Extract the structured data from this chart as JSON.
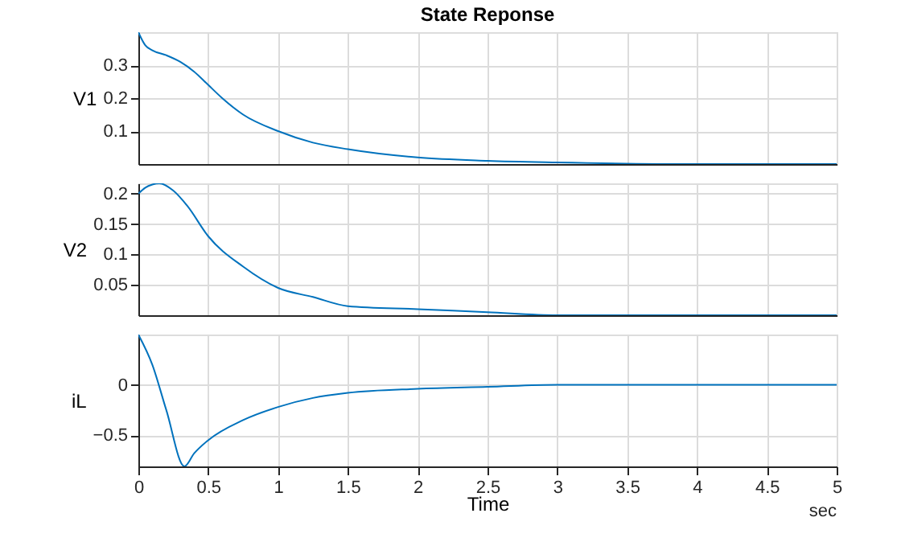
{
  "chart_data": [
    {
      "type": "line",
      "title": "State Reponse",
      "ylabel": "V1",
      "x": [
        0,
        0.05,
        0.1,
        0.2,
        0.3,
        0.4,
        0.5,
        0.6,
        0.75,
        1,
        1.25,
        1.5,
        2,
        2.5,
        3,
        4,
        5
      ],
      "series": [
        {
          "color": "#0072bd",
          "values": [
            0.4,
            0.36,
            0.345,
            0.33,
            0.31,
            0.28,
            0.24,
            0.2,
            0.15,
            0.1,
            0.065,
            0.045,
            0.02,
            0.01,
            0.005,
            0.0,
            0.0
          ]
        }
      ],
      "xlim": [
        0,
        5
      ],
      "xticks": [
        0,
        0.5,
        1,
        1.5,
        2,
        2.5,
        3,
        3.5,
        4,
        4.5,
        5
      ],
      "ylim": [
        0,
        0.4
      ],
      "yticks": [
        0.1,
        0.2,
        0.3
      ],
      "grid": true,
      "tick_labels": "y"
    },
    {
      "type": "line",
      "ylabel": "V2",
      "x": [
        0,
        0.05,
        0.1,
        0.15,
        0.25,
        0.35,
        0.5,
        0.75,
        1,
        1.25,
        1.5,
        2,
        2.5,
        3,
        4,
        5
      ],
      "series": [
        {
          "color": "#0072bd",
          "values": [
            0.2,
            0.21,
            0.215,
            0.217,
            0.205,
            0.18,
            0.13,
            0.08,
            0.045,
            0.03,
            0.015,
            0.01,
            0.005,
            0.0,
            0.0,
            0.0
          ]
        }
      ],
      "xlim": [
        0,
        5
      ],
      "xticks": [
        0,
        0.5,
        1,
        1.5,
        2,
        2.5,
        3,
        3.5,
        4,
        4.5,
        5
      ],
      "ylim": [
        0,
        0.217
      ],
      "yticks": [
        0.05,
        0.1,
        0.15,
        0.2
      ],
      "grid": true,
      "tick_labels": "y"
    },
    {
      "type": "line",
      "ylabel": "iL",
      "xlabel": "Time",
      "annotations": [
        "sec"
      ],
      "x": [
        0,
        0.1,
        0.2,
        0.33,
        0.4,
        0.5,
        0.75,
        1,
        1.25,
        1.5,
        2,
        2.5,
        3,
        4,
        5
      ],
      "series": [
        {
          "color": "#0072bd",
          "values": [
            0.5,
            0.2,
            -0.25,
            -0.81,
            -0.68,
            -0.55,
            -0.35,
            -0.22,
            -0.13,
            -0.08,
            -0.04,
            -0.02,
            0.0,
            0.0,
            0.0
          ]
        }
      ],
      "xlim": [
        0,
        5
      ],
      "xticks": [
        0,
        0.5,
        1,
        1.5,
        2,
        2.5,
        3,
        3.5,
        4,
        4.5,
        5
      ],
      "ylim": [
        -0.81,
        0.5
      ],
      "yticks": [
        -0.5,
        0
      ],
      "grid": true
    }
  ]
}
